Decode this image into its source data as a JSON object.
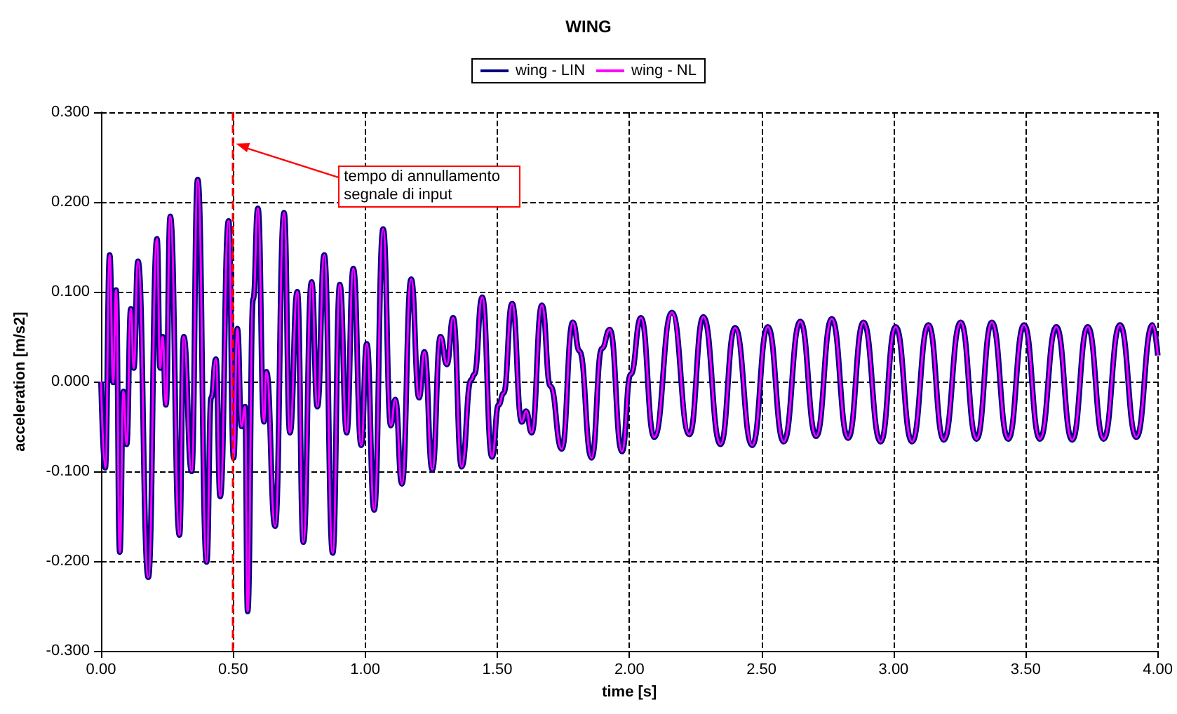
{
  "chart_data": {
    "type": "line",
    "title": "WING",
    "xlabel": "time [s]",
    "ylabel": "acceleration [m/s2]",
    "x": [
      0,
      0.016,
      0.033,
      0.046,
      0.057,
      0.071,
      0.085,
      0.097,
      0.113,
      0.124,
      0.14,
      0.179,
      0.212,
      0.224,
      0.233,
      0.246,
      0.262,
      0.297,
      0.313,
      0.343,
      0.366,
      0.4,
      0.417,
      0.435,
      0.451,
      0.483,
      0.502,
      0.516,
      0.532,
      0.545,
      0.555,
      0.576,
      0.594,
      0.617,
      0.626,
      0.659,
      0.693,
      0.715,
      0.743,
      0.766,
      0.797,
      0.819,
      0.845,
      0.877,
      0.904,
      0.93,
      0.955,
      0.985,
      1.006,
      1.034,
      1.068,
      1.097,
      1.114,
      1.139,
      1.174,
      1.204,
      1.224,
      1.254,
      1.285,
      1.309,
      1.333,
      1.365,
      1.401,
      1.413,
      1.443,
      1.48,
      1.505,
      1.524,
      1.556,
      1.593,
      1.609,
      1.63,
      1.669,
      1.701,
      1.744,
      1.786,
      1.811,
      1.857,
      1.896,
      1.926,
      1.972,
      2.005,
      2.044,
      2.094,
      2.161,
      2.227,
      2.28,
      2.345,
      2.4,
      2.465,
      2.524,
      2.584,
      2.647,
      2.707,
      2.766,
      2.828,
      2.886,
      2.951,
      3.008,
      3.07,
      3.132,
      3.19,
      3.254,
      3.314,
      3.372,
      3.434,
      3.494,
      3.554,
      3.616,
      3.676,
      3.735,
      3.795,
      3.857,
      3.919,
      3.98,
      4.0
    ],
    "series": [
      {
        "name": "wing - LIN",
        "color": "#000080",
        "values": [
          0,
          -0.096,
          0.141,
          -0.001,
          0.102,
          -0.19,
          -0.011,
          -0.07,
          0.081,
          0.015,
          0.134,
          -0.218,
          0.159,
          0.015,
          0.05,
          -0.026,
          0.184,
          -0.171,
          0.05,
          -0.1,
          0.225,
          -0.201,
          -0.018,
          0.025,
          -0.128,
          0.179,
          -0.085,
          0.059,
          -0.05,
          -0.028,
          -0.256,
          0.092,
          0.193,
          -0.045,
          0.011,
          -0.161,
          0.188,
          -0.057,
          0.1,
          -0.179,
          0.111,
          -0.028,
          0.141,
          -0.191,
          0.108,
          -0.057,
          0.126,
          -0.071,
          0.042,
          -0.143,
          0.17,
          -0.049,
          -0.02,
          -0.114,
          0.114,
          -0.018,
          0.033,
          -0.098,
          0.05,
          0.019,
          0.071,
          -0.095,
          0.002,
          0.008,
          0.094,
          -0.084,
          -0.026,
          -0.013,
          0.087,
          -0.045,
          -0.033,
          -0.057,
          0.085,
          -0.005,
          -0.075,
          0.066,
          0.034,
          -0.085,
          0.037,
          0.058,
          -0.078,
          0.008,
          0.071,
          -0.062,
          0.077,
          -0.059,
          0.072,
          -0.07,
          0.06,
          -0.071,
          0.061,
          -0.067,
          0.067,
          -0.061,
          0.07,
          -0.063,
          0.066,
          -0.067,
          0.061,
          -0.067,
          0.063,
          -0.065,
          0.066,
          -0.064,
          0.066,
          -0.064,
          0.063,
          -0.064,
          0.061,
          -0.065,
          0.061,
          -0.064,
          0.063,
          -0.062,
          0.063,
          0.029
        ]
      },
      {
        "name": "wing - NL",
        "color": "#ff00ff",
        "values": [
          0,
          -0.096,
          0.141,
          -0.001,
          0.102,
          -0.19,
          -0.011,
          -0.07,
          0.081,
          0.015,
          0.134,
          -0.218,
          0.159,
          0.015,
          0.05,
          -0.026,
          0.184,
          -0.171,
          0.05,
          -0.1,
          0.225,
          -0.201,
          -0.018,
          0.025,
          -0.128,
          0.179,
          -0.085,
          0.059,
          -0.05,
          -0.028,
          -0.256,
          0.092,
          0.193,
          -0.045,
          0.011,
          -0.161,
          0.188,
          -0.057,
          0.1,
          -0.179,
          0.111,
          -0.028,
          0.141,
          -0.191,
          0.108,
          -0.057,
          0.126,
          -0.071,
          0.042,
          -0.143,
          0.17,
          -0.049,
          -0.02,
          -0.114,
          0.114,
          -0.018,
          0.033,
          -0.098,
          0.05,
          0.019,
          0.071,
          -0.095,
          0.002,
          0.008,
          0.094,
          -0.084,
          -0.026,
          -0.013,
          0.087,
          -0.045,
          -0.033,
          -0.057,
          0.085,
          -0.005,
          -0.075,
          0.066,
          0.034,
          -0.085,
          0.037,
          0.058,
          -0.078,
          0.008,
          0.071,
          -0.062,
          0.077,
          -0.059,
          0.072,
          -0.07,
          0.06,
          -0.071,
          0.061,
          -0.067,
          0.067,
          -0.061,
          0.07,
          -0.063,
          0.066,
          -0.067,
          0.061,
          -0.067,
          0.063,
          -0.065,
          0.066,
          -0.064,
          0.066,
          -0.064,
          0.063,
          -0.064,
          0.061,
          -0.065,
          0.061,
          -0.064,
          0.063,
          -0.062,
          0.063,
          0.029
        ]
      }
    ],
    "xlim": [
      0,
      4
    ],
    "xticks": [
      {
        "value": 0,
        "label": "0.00"
      },
      {
        "value": 0.5,
        "label": "0.50"
      },
      {
        "value": 1,
        "label": "1.00"
      },
      {
        "value": 1.5,
        "label": "1.50"
      },
      {
        "value": 2,
        "label": "2.00"
      },
      {
        "value": 2.5,
        "label": "2.50"
      },
      {
        "value": 3,
        "label": "3.00"
      },
      {
        "value": 3.5,
        "label": "3.50"
      },
      {
        "value": 4,
        "label": "4.00"
      }
    ],
    "ylim": [
      -0.3,
      0.3
    ],
    "yticks": [
      {
        "value": -0.3,
        "label": "-0.300"
      },
      {
        "value": -0.2,
        "label": "-0.200"
      },
      {
        "value": -0.1,
        "label": "-0.100"
      },
      {
        "value": 0,
        "label": "0.000"
      },
      {
        "value": 0.1,
        "label": "0.100"
      },
      {
        "value": 0.2,
        "label": "0.200"
      },
      {
        "value": 0.3,
        "label": "0.300"
      }
    ],
    "grid": true,
    "legend": "top",
    "marker": "none",
    "line_style": "solid",
    "ref_lines": [
      {
        "axis": "x",
        "value": 0.5,
        "color": "#ff0000",
        "line_style": "dashed"
      }
    ],
    "annotations": [
      {
        "text": "tempo di annullamento segnale di input",
        "x": 0.5,
        "y": 0.265
      }
    ]
  }
}
